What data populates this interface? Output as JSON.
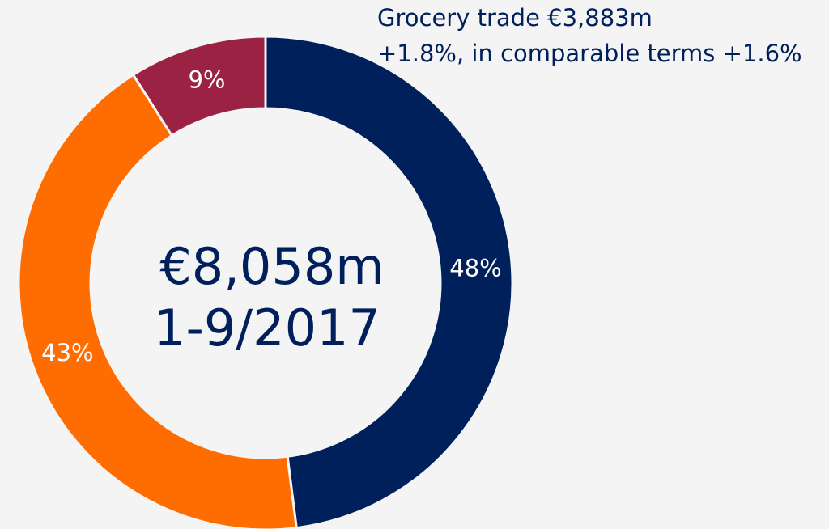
{
  "chart_data": {
    "type": "donut",
    "values": [
      48,
      43,
      9
    ],
    "value_labels": [
      "48%",
      "43%",
      "9%"
    ],
    "colors": [
      "#00205b",
      "#ff6c00",
      "#9b2242"
    ],
    "center_text": [
      "€8,058m",
      "1-9/2017"
    ],
    "annotations": [
      "Grocery trade €3,883m",
      "+1.8%, in comparable terms +1.6%"
    ]
  }
}
